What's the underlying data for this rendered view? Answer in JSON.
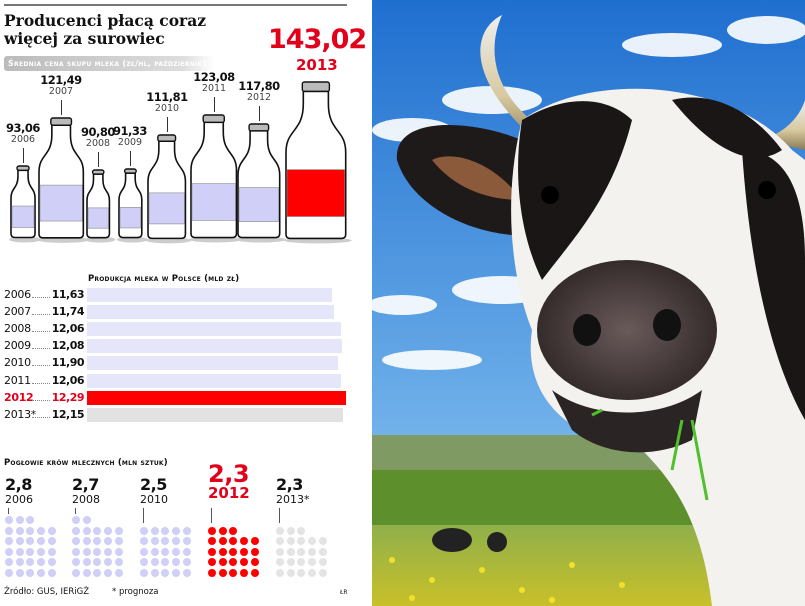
{
  "title": "Producenci płacą coraz więcej za surowiec",
  "highlight": {
    "value": "143,02",
    "year": "2013"
  },
  "colors": {
    "accent": "#e3001b",
    "lavender": "#cfcff7",
    "bar": "#e6e6fb",
    "forecast": "#e2e2e2"
  },
  "chart_data": [
    {
      "type": "bar",
      "title": "Średnia cena skupu mleka (zł/hl, październik)",
      "categories": [
        "2006",
        "2007",
        "2008",
        "2009",
        "2010",
        "2011",
        "2012",
        "2013"
      ],
      "labels": [
        "93,06",
        "121,49",
        "90,80",
        "91,33",
        "111,81",
        "123,08",
        "117,80",
        "143,02"
      ],
      "values": [
        93.06,
        121.49,
        90.8,
        91.33,
        111.81,
        123.08,
        117.8,
        143.02
      ],
      "highlight": "2013"
    },
    {
      "type": "bar",
      "orientation": "horizontal",
      "title": "Produkcja mleka w Polsce (mld zł)",
      "categories": [
        "2006",
        "2007",
        "2008",
        "2009",
        "2010",
        "2011",
        "2012",
        "2013*"
      ],
      "labels": [
        "11,63",
        "11,74",
        "12,06",
        "12,08",
        "11,90",
        "12,06",
        "12,29",
        "12,15"
      ],
      "values": [
        11.63,
        11.74,
        12.06,
        12.08,
        11.9,
        12.06,
        12.29,
        12.15
      ],
      "highlight": "2012",
      "forecast": "2013*"
    },
    {
      "type": "pictogram",
      "title": "Pogłowie krów mlecznych (mln sztuk)",
      "categories": [
        "2006",
        "2008",
        "2010",
        "2012",
        "2013*"
      ],
      "labels": [
        "2,8",
        "2,7",
        "2,5",
        "2,3",
        "2,3"
      ],
      "values": [
        2.8,
        2.7,
        2.5,
        2.3,
        2.3
      ],
      "unit_per_dot": 0.1,
      "highlight": "2012",
      "forecast": "2013*"
    }
  ],
  "footer": {
    "source": "Źródło: GUS, IERiGŻ",
    "note": "* prognoza",
    "author": "ŁR"
  }
}
